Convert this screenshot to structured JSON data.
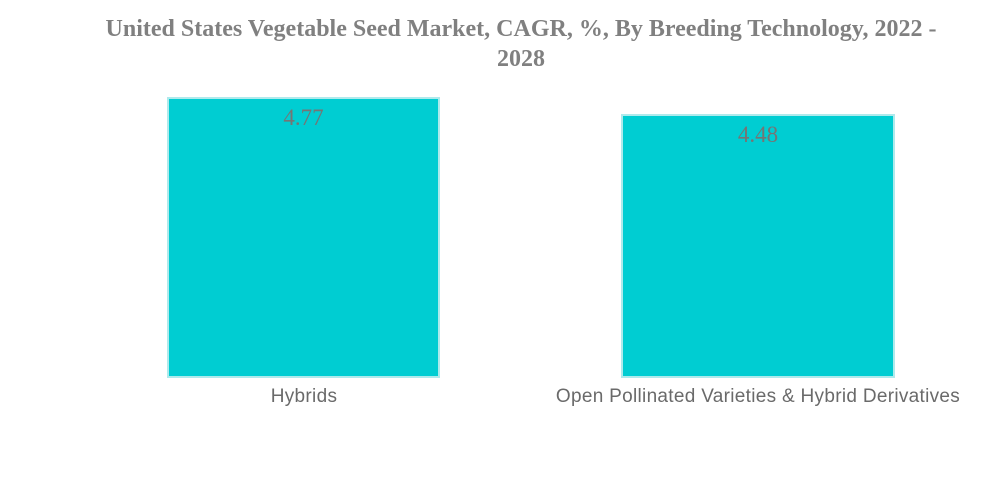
{
  "page": {
    "background": "#ffffff"
  },
  "title": {
    "text": "United States Vegetable Seed Market, CAGR, %, By Breeding Technology, 2022 - 2028",
    "line1": "United States Vegetable Seed Market, CAGR, %, By Breeding Technology, 2022 -",
    "line2": "2028",
    "color": "#808080"
  },
  "chart_data": {
    "type": "bar",
    "orientation": "vertical",
    "title": "United States Vegetable Seed Market, CAGR, %, By Breeding Technology, 2022 - 2028",
    "categories": [
      "Hybrids",
      "Open Pollinated Varieties & Hybrid Derivatives"
    ],
    "values": [
      4.77,
      4.48
    ],
    "value_labels": [
      "4.77",
      "4.48"
    ],
    "xlabel": "",
    "ylabel": "",
    "ylim": [
      0,
      5
    ],
    "grid": false,
    "legend": false,
    "bar_color": "#00cdd2",
    "bar_border_color": "#aeeaec",
    "value_label_color": "#757575",
    "category_label_color": "#6a6a6a"
  }
}
